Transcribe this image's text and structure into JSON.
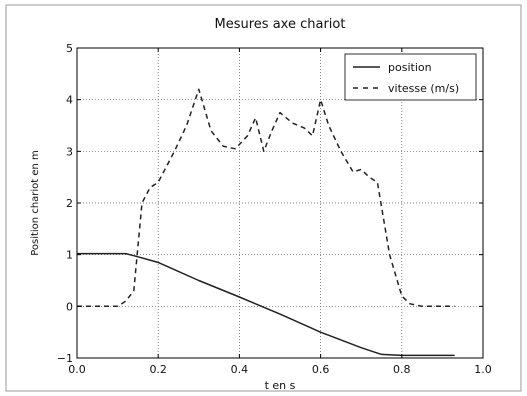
{
  "chart_data": {
    "type": "line",
    "title": "Mesures axe chariot",
    "xlabel": "t en s",
    "ylabel": "Position chariot en m",
    "xlim": [
      0.0,
      1.0
    ],
    "ylim": [
      -1,
      5
    ],
    "x_ticks": [
      "0.0",
      "0.2",
      "0.4",
      "0.6",
      "0.8",
      "1.0"
    ],
    "y_ticks": [
      "−1",
      "0",
      "1",
      "2",
      "3",
      "4",
      "5"
    ],
    "grid": true,
    "legend_position": "top-right",
    "series": [
      {
        "name": "position",
        "style": "solid",
        "color": "#222222",
        "x": [
          0.0,
          0.12,
          0.14,
          0.2,
          0.3,
          0.4,
          0.5,
          0.6,
          0.7,
          0.75,
          0.8,
          0.93
        ],
        "y": [
          1.02,
          1.02,
          0.98,
          0.85,
          0.5,
          0.18,
          -0.15,
          -0.5,
          -0.8,
          -0.93,
          -0.95,
          -0.95
        ]
      },
      {
        "name": "vitesse (m/s)",
        "style": "dashed",
        "color": "#222222",
        "x": [
          0.0,
          0.1,
          0.12,
          0.14,
          0.16,
          0.18,
          0.2,
          0.22,
          0.24,
          0.27,
          0.3,
          0.33,
          0.36,
          0.39,
          0.42,
          0.44,
          0.46,
          0.48,
          0.5,
          0.53,
          0.56,
          0.58,
          0.6,
          0.62,
          0.65,
          0.68,
          0.7,
          0.72,
          0.74,
          0.77,
          0.8,
          0.82,
          0.85,
          0.93
        ],
        "y": [
          0.0,
          0.0,
          0.1,
          0.3,
          2.0,
          2.3,
          2.4,
          2.7,
          3.0,
          3.5,
          4.2,
          3.4,
          3.1,
          3.05,
          3.3,
          3.65,
          3.0,
          3.4,
          3.75,
          3.55,
          3.45,
          3.3,
          4.0,
          3.5,
          3.0,
          2.6,
          2.65,
          2.5,
          2.4,
          1.0,
          0.2,
          0.05,
          0.0,
          0.0
        ]
      }
    ]
  }
}
